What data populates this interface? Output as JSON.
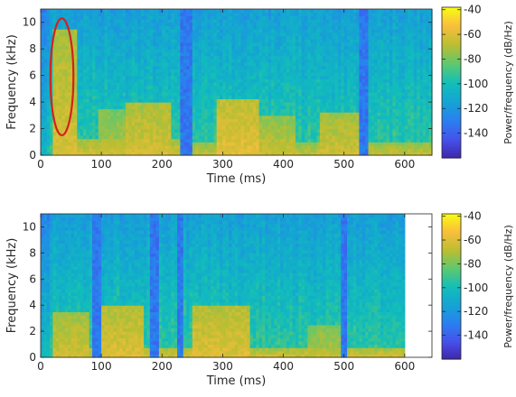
{
  "chart_data": [
    {
      "type": "heatmap",
      "title": "",
      "xlabel": "Time (ms)",
      "ylabel": "Frequency (kHz)",
      "xlim": [
        0,
        645
      ],
      "ylim": [
        0,
        11
      ],
      "xticks": [
        0,
        100,
        200,
        300,
        400,
        500,
        600
      ],
      "yticks": [
        0,
        2,
        4,
        6,
        8,
        10
      ],
      "data_extent_ms": [
        0,
        645
      ],
      "colorbar": {
        "label": "Power/frequency (dB/Hz)",
        "range": [
          -160,
          -38
        ],
        "ticks": [
          -40,
          -60,
          -80,
          -100,
          -120,
          -140
        ]
      },
      "annotation": {
        "shape": "ellipse",
        "color": "#d62020",
        "center_ms": 35,
        "center_khz": 5.9,
        "radius_ms": 19,
        "radius_khz": 4.4
      },
      "dark_gaps_ms": [
        [
          228,
          250
        ],
        [
          525,
          540
        ]
      ],
      "loud_segments": [
        {
          "t": [
            20,
            60
          ],
          "f_max_khz": 9.5,
          "level_db": -62
        },
        {
          "t": [
            20,
            230
          ],
          "f_max_khz": 1.2,
          "level_db": -64
        },
        {
          "t": [
            95,
            140
          ],
          "f_max_khz": 3.5,
          "level_db": -70
        },
        {
          "t": [
            140,
            215
          ],
          "f_max_khz": 4.0,
          "level_db": -62
        },
        {
          "t": [
            290,
            360
          ],
          "f_max_khz": 4.2,
          "level_db": -58
        },
        {
          "t": [
            360,
            420
          ],
          "f_max_khz": 2.8,
          "level_db": -66
        },
        {
          "t": [
            460,
            525
          ],
          "f_max_khz": 3.2,
          "level_db": -64
        },
        {
          "t": [
            250,
            645
          ],
          "f_max_khz": 0.8,
          "level_db": -66
        }
      ]
    },
    {
      "type": "heatmap",
      "title": "",
      "xlabel": "Time (ms)",
      "ylabel": "Frequency (kHz)",
      "xlim": [
        0,
        645
      ],
      "ylim": [
        0,
        11
      ],
      "xticks": [
        0,
        100,
        200,
        300,
        400,
        500,
        600
      ],
      "yticks": [
        0,
        2,
        4,
        6,
        8,
        10
      ],
      "data_extent_ms": [
        0,
        600
      ],
      "colorbar": {
        "label": "Power/frequency (dB/Hz)",
        "range": [
          -160,
          -38
        ],
        "ticks": [
          -40,
          -60,
          -80,
          -100,
          -120,
          -140
        ]
      },
      "dark_gaps_ms": [
        [
          85,
          98
        ],
        [
          178,
          192
        ],
        [
          222,
          232
        ],
        [
          492,
          505
        ]
      ],
      "loud_segments": [
        {
          "t": [
            20,
            80
          ],
          "f_max_khz": 3.5,
          "level_db": -64
        },
        {
          "t": [
            100,
            170
          ],
          "f_max_khz": 3.8,
          "level_db": -60
        },
        {
          "t": [
            250,
            345
          ],
          "f_max_khz": 3.9,
          "level_db": -60
        },
        {
          "t": [
            440,
            500
          ],
          "f_max_khz": 2.5,
          "level_db": -70
        },
        {
          "t": [
            20,
            600
          ],
          "f_max_khz": 0.7,
          "level_db": -64
        }
      ]
    }
  ]
}
